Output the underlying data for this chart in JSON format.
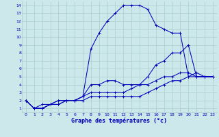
{
  "xlabel": "Graphe des températures (°c)",
  "xlim": [
    -0.5,
    23.5
  ],
  "ylim": [
    0.5,
    14.5
  ],
  "yticks": [
    1,
    2,
    3,
    4,
    5,
    6,
    7,
    8,
    9,
    10,
    11,
    12,
    13,
    14
  ],
  "xticks": [
    0,
    1,
    2,
    3,
    4,
    5,
    6,
    7,
    8,
    9,
    10,
    11,
    12,
    13,
    14,
    15,
    16,
    17,
    18,
    19,
    20,
    21,
    22,
    23
  ],
  "bg_color": "#cce8ea",
  "grid_color": "#aacccc",
  "line_color": "#0000bb",
  "line1_x": [
    0,
    1,
    2,
    3,
    4,
    5,
    6,
    7,
    8,
    9,
    10,
    11,
    12,
    13,
    14,
    15,
    16,
    17,
    18,
    19,
    20,
    21,
    22,
    23
  ],
  "line1_y": [
    2,
    1,
    1,
    1.5,
    1.5,
    2,
    2,
    2,
    2.5,
    2.5,
    2.5,
    2.5,
    2.5,
    2.5,
    2.5,
    3,
    3.5,
    4,
    4.5,
    4.5,
    5,
    5,
    5,
    5
  ],
  "line2_x": [
    0,
    1,
    2,
    3,
    4,
    5,
    6,
    7,
    8,
    9,
    10,
    11,
    12,
    13,
    14,
    15,
    16,
    17,
    18,
    19,
    20,
    21,
    22,
    23
  ],
  "line2_y": [
    2,
    1,
    1,
    1.5,
    1.5,
    2,
    2,
    2.5,
    8.5,
    10.5,
    12,
    13,
    14,
    14,
    14,
    13.5,
    11.5,
    11,
    10.5,
    10.5,
    5,
    5.5,
    5,
    5
  ],
  "line3_x": [
    0,
    1,
    2,
    3,
    4,
    5,
    6,
    7,
    8,
    9,
    10,
    11,
    12,
    13,
    14,
    15,
    16,
    17,
    18,
    19,
    20,
    21,
    22,
    23
  ],
  "line3_y": [
    2,
    1,
    1,
    1.5,
    2,
    2,
    2,
    2.5,
    4,
    4,
    4.5,
    4.5,
    4,
    4,
    4,
    5,
    6.5,
    7,
    8,
    8,
    9,
    5,
    5,
    5
  ],
  "line4_x": [
    0,
    1,
    2,
    3,
    4,
    5,
    6,
    7,
    8,
    9,
    10,
    11,
    12,
    13,
    14,
    15,
    16,
    17,
    18,
    19,
    20,
    21,
    22,
    23
  ],
  "line4_y": [
    2,
    1,
    1.5,
    1.5,
    2,
    2,
    2,
    2.5,
    3,
    3,
    3,
    3,
    3,
    3.5,
    4,
    4,
    4.5,
    5,
    5,
    5.5,
    5.5,
    5,
    5,
    5
  ]
}
